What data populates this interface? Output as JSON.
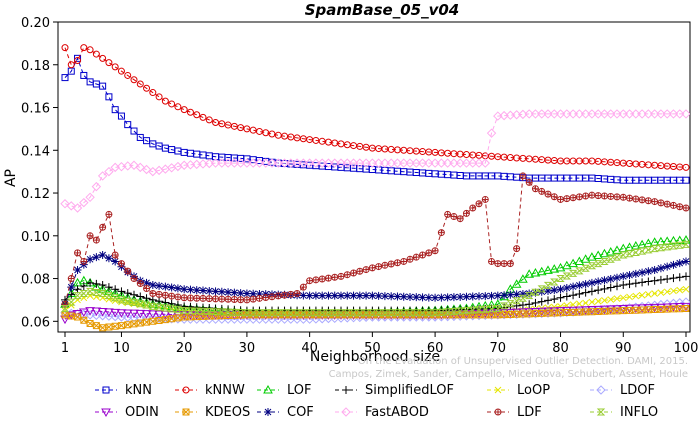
{
  "chart_data": {
    "type": "line",
    "title": "SpamBase_05_v04",
    "xlabel": "Neighborhood size",
    "ylabel": "AP",
    "xlim": [
      1,
      100
    ],
    "ylim": [
      0.055,
      0.2
    ],
    "xticks": [
      1,
      10,
      20,
      30,
      40,
      50,
      60,
      70,
      80,
      90,
      100
    ],
    "yticks": [
      0.06,
      0.08,
      0.1,
      0.12,
      0.14,
      0.16,
      0.18,
      0.2
    ],
    "ytick_labels": [
      "0.06",
      "0.08",
      "0.10",
      "0.12",
      "0.14",
      "0.16",
      "0.18",
      "0.20"
    ],
    "grid": false,
    "legend_position": "bottom",
    "watermark": [
      "Campos, Zimek, Sander, Campello, Micenkova, Schubert, Assent, Houle",
      "On the Evaluation of Unsupervised Outlier Detection. DAMI, 2015."
    ],
    "series": [
      {
        "name": "kNN",
        "color": "#0000cc",
        "marker": "square",
        "points": [
          [
            1,
            0.174
          ],
          [
            2,
            0.177
          ],
          [
            3,
            0.183
          ],
          [
            4,
            0.175
          ],
          [
            5,
            0.172
          ],
          [
            6,
            0.171
          ],
          [
            7,
            0.17
          ],
          [
            8,
            0.165
          ],
          [
            9,
            0.159
          ],
          [
            10,
            0.156
          ],
          [
            11,
            0.152
          ],
          [
            12,
            0.149
          ],
          [
            13,
            0.146
          ],
          [
            15,
            0.143
          ],
          [
            17,
            0.141
          ],
          [
            20,
            0.139
          ],
          [
            25,
            0.137
          ],
          [
            30,
            0.136
          ],
          [
            35,
            0.134
          ],
          [
            40,
            0.133
          ],
          [
            45,
            0.132
          ],
          [
            50,
            0.131
          ],
          [
            55,
            0.13
          ],
          [
            60,
            0.129
          ],
          [
            65,
            0.128
          ],
          [
            70,
            0.128
          ],
          [
            75,
            0.127
          ],
          [
            80,
            0.127
          ],
          [
            85,
            0.127
          ],
          [
            90,
            0.126
          ],
          [
            95,
            0.126
          ],
          [
            100,
            0.126
          ]
        ]
      },
      {
        "name": "kNNW",
        "color": "#dd0000",
        "marker": "circle",
        "points": [
          [
            1,
            0.188
          ],
          [
            2,
            0.18
          ],
          [
            3,
            0.182
          ],
          [
            4,
            0.188
          ],
          [
            5,
            0.187
          ],
          [
            6,
            0.185
          ],
          [
            7,
            0.183
          ],
          [
            8,
            0.181
          ],
          [
            9,
            0.179
          ],
          [
            10,
            0.177
          ],
          [
            12,
            0.173
          ],
          [
            15,
            0.167
          ],
          [
            17,
            0.163
          ],
          [
            20,
            0.159
          ],
          [
            25,
            0.153
          ],
          [
            30,
            0.15
          ],
          [
            35,
            0.147
          ],
          [
            40,
            0.145
          ],
          [
            45,
            0.143
          ],
          [
            50,
            0.141
          ],
          [
            55,
            0.14
          ],
          [
            60,
            0.139
          ],
          [
            65,
            0.138
          ],
          [
            70,
            0.137
          ],
          [
            75,
            0.136
          ],
          [
            80,
            0.135
          ],
          [
            85,
            0.135
          ],
          [
            90,
            0.134
          ],
          [
            95,
            0.133
          ],
          [
            100,
            0.132
          ]
        ]
      },
      {
        "name": "LOF",
        "color": "#00cc00",
        "marker": "triangle",
        "points": [
          [
            1,
            0.068
          ],
          [
            2,
            0.073
          ],
          [
            3,
            0.078
          ],
          [
            4,
            0.079
          ],
          [
            5,
            0.078
          ],
          [
            6,
            0.076
          ],
          [
            7,
            0.075
          ],
          [
            8,
            0.074
          ],
          [
            10,
            0.072
          ],
          [
            12,
            0.07
          ],
          [
            15,
            0.068
          ],
          [
            20,
            0.066
          ],
          [
            25,
            0.065
          ],
          [
            30,
            0.064
          ],
          [
            40,
            0.064
          ],
          [
            50,
            0.064
          ],
          [
            60,
            0.065
          ],
          [
            65,
            0.066
          ],
          [
            70,
            0.068
          ],
          [
            72,
            0.075
          ],
          [
            75,
            0.082
          ],
          [
            80,
            0.085
          ],
          [
            85,
            0.09
          ],
          [
            90,
            0.094
          ],
          [
            95,
            0.097
          ],
          [
            100,
            0.098
          ]
        ]
      },
      {
        "name": "SimplifiedLOF",
        "color": "#000000",
        "marker": "plus",
        "points": [
          [
            1,
            0.07
          ],
          [
            3,
            0.075
          ],
          [
            5,
            0.078
          ],
          [
            7,
            0.077
          ],
          [
            10,
            0.074
          ],
          [
            15,
            0.07
          ],
          [
            20,
            0.067
          ],
          [
            25,
            0.066
          ],
          [
            30,
            0.065
          ],
          [
            40,
            0.065
          ],
          [
            50,
            0.065
          ],
          [
            60,
            0.065
          ],
          [
            70,
            0.066
          ],
          [
            75,
            0.068
          ],
          [
            80,
            0.071
          ],
          [
            85,
            0.074
          ],
          [
            90,
            0.077
          ],
          [
            95,
            0.079
          ],
          [
            100,
            0.081
          ]
        ]
      },
      {
        "name": "LoOP",
        "color": "#e6e600",
        "marker": "cross",
        "points": [
          [
            1,
            0.065
          ],
          [
            3,
            0.07
          ],
          [
            5,
            0.072
          ],
          [
            7,
            0.071
          ],
          [
            10,
            0.069
          ],
          [
            15,
            0.067
          ],
          [
            20,
            0.065
          ],
          [
            30,
            0.064
          ],
          [
            40,
            0.063
          ],
          [
            50,
            0.063
          ],
          [
            60,
            0.063
          ],
          [
            70,
            0.064
          ],
          [
            80,
            0.067
          ],
          [
            90,
            0.071
          ],
          [
            100,
            0.075
          ]
        ]
      },
      {
        "name": "LDOF",
        "color": "#aaaaff",
        "marker": "diamond",
        "points": [
          [
            1,
            0.064
          ],
          [
            5,
            0.063
          ],
          [
            10,
            0.062
          ],
          [
            20,
            0.061
          ],
          [
            30,
            0.061
          ],
          [
            40,
            0.061
          ],
          [
            50,
            0.062
          ],
          [
            60,
            0.062
          ],
          [
            70,
            0.063
          ],
          [
            80,
            0.064
          ],
          [
            90,
            0.066
          ],
          [
            100,
            0.069
          ]
        ]
      },
      {
        "name": "ODIN",
        "color": "#9900cc",
        "marker": "triangle-down",
        "points": [
          [
            1,
            0.061
          ],
          [
            2,
            0.063
          ],
          [
            5,
            0.065
          ],
          [
            10,
            0.064
          ],
          [
            20,
            0.063
          ],
          [
            30,
            0.063
          ],
          [
            40,
            0.063
          ],
          [
            50,
            0.063
          ],
          [
            60,
            0.063
          ],
          [
            70,
            0.064
          ],
          [
            80,
            0.065
          ],
          [
            90,
            0.066
          ],
          [
            100,
            0.067
          ]
        ]
      },
      {
        "name": "KDEOS",
        "color": "#e69900",
        "marker": "square-x",
        "points": [
          [
            1,
            0.063
          ],
          [
            3,
            0.062
          ],
          [
            5,
            0.059
          ],
          [
            7,
            0.057
          ],
          [
            10,
            0.058
          ],
          [
            15,
            0.06
          ],
          [
            20,
            0.062
          ],
          [
            30,
            0.063
          ],
          [
            40,
            0.063
          ],
          [
            50,
            0.063
          ],
          [
            60,
            0.063
          ],
          [
            70,
            0.063
          ],
          [
            80,
            0.064
          ],
          [
            90,
            0.065
          ],
          [
            100,
            0.066
          ]
        ]
      },
      {
        "name": "COF",
        "color": "#000080",
        "marker": "asterisk",
        "points": [
          [
            1,
            0.068
          ],
          [
            3,
            0.084
          ],
          [
            5,
            0.089
          ],
          [
            7,
            0.091
          ],
          [
            9,
            0.088
          ],
          [
            11,
            0.083
          ],
          [
            13,
            0.079
          ],
          [
            15,
            0.077
          ],
          [
            20,
            0.075
          ],
          [
            25,
            0.074
          ],
          [
            30,
            0.073
          ],
          [
            40,
            0.072
          ],
          [
            50,
            0.072
          ],
          [
            60,
            0.071
          ],
          [
            70,
            0.072
          ],
          [
            75,
            0.073
          ],
          [
            80,
            0.075
          ],
          [
            85,
            0.078
          ],
          [
            90,
            0.081
          ],
          [
            95,
            0.084
          ],
          [
            100,
            0.088
          ]
        ]
      },
      {
        "name": "FastABOD",
        "color": "#ffaaee",
        "marker": "diamond",
        "points": [
          [
            1,
            0.115
          ],
          [
            3,
            0.113
          ],
          [
            5,
            0.118
          ],
          [
            7,
            0.128
          ],
          [
            9,
            0.132
          ],
          [
            12,
            0.133
          ],
          [
            15,
            0.13
          ],
          [
            20,
            0.133
          ],
          [
            25,
            0.134
          ],
          [
            30,
            0.134
          ],
          [
            40,
            0.134
          ],
          [
            50,
            0.134
          ],
          [
            60,
            0.134
          ],
          [
            68,
            0.134
          ],
          [
            69,
            0.148
          ],
          [
            70,
            0.156
          ],
          [
            75,
            0.157
          ],
          [
            80,
            0.157
          ],
          [
            90,
            0.157
          ],
          [
            100,
            0.157
          ]
        ]
      },
      {
        "name": "LDF",
        "color": "#aa2222",
        "marker": "circle-plus",
        "points": [
          [
            1,
            0.068
          ],
          [
            2,
            0.08
          ],
          [
            3,
            0.092
          ],
          [
            4,
            0.088
          ],
          [
            5,
            0.1
          ],
          [
            6,
            0.098
          ],
          [
            7,
            0.104
          ],
          [
            8,
            0.11
          ],
          [
            9,
            0.091
          ],
          [
            10,
            0.087
          ],
          [
            12,
            0.08
          ],
          [
            15,
            0.073
          ],
          [
            20,
            0.071
          ],
          [
            30,
            0.07
          ],
          [
            38,
            0.073
          ],
          [
            40,
            0.079
          ],
          [
            45,
            0.081
          ],
          [
            50,
            0.085
          ],
          [
            55,
            0.088
          ],
          [
            60,
            0.093
          ],
          [
            62,
            0.11
          ],
          [
            64,
            0.108
          ],
          [
            66,
            0.113
          ],
          [
            68,
            0.117
          ],
          [
            69,
            0.088
          ],
          [
            70,
            0.087
          ],
          [
            72,
            0.087
          ],
          [
            73,
            0.094
          ],
          [
            74,
            0.128
          ],
          [
            76,
            0.122
          ],
          [
            80,
            0.117
          ],
          [
            85,
            0.119
          ],
          [
            90,
            0.118
          ],
          [
            95,
            0.116
          ],
          [
            100,
            0.113
          ]
        ]
      },
      {
        "name": "INFLO",
        "color": "#99cc33",
        "marker": "hourglass",
        "points": [
          [
            1,
            0.066
          ],
          [
            3,
            0.072
          ],
          [
            5,
            0.074
          ],
          [
            7,
            0.073
          ],
          [
            10,
            0.07
          ],
          [
            15,
            0.067
          ],
          [
            20,
            0.065
          ],
          [
            30,
            0.064
          ],
          [
            40,
            0.064
          ],
          [
            50,
            0.064
          ],
          [
            60,
            0.064
          ],
          [
            70,
            0.066
          ],
          [
            75,
            0.072
          ],
          [
            80,
            0.08
          ],
          [
            85,
            0.086
          ],
          [
            90,
            0.091
          ],
          [
            95,
            0.094
          ],
          [
            100,
            0.096
          ]
        ]
      }
    ]
  }
}
